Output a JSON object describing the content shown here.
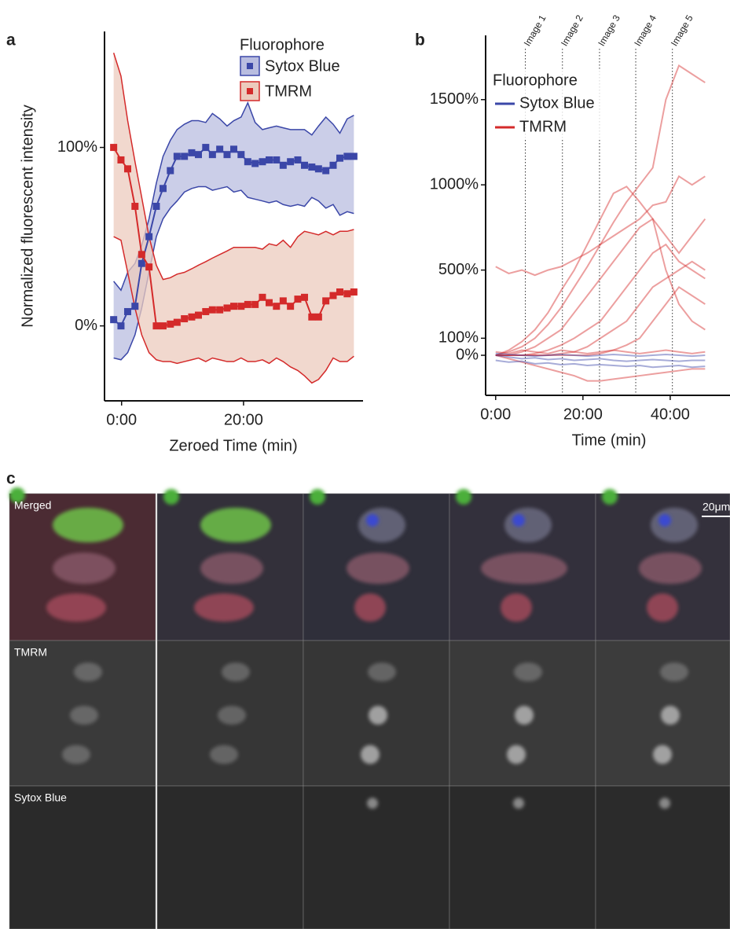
{
  "chart_data": [
    {
      "type": "line",
      "label": "a",
      "y_label": "Normalized fluorescent intensity",
      "x_label": "Zeroed Time (min)",
      "legend_title": "Fluorophore",
      "xlim": [
        -2.8,
        39.6
      ],
      "ylim": [
        -42,
        165
      ],
      "xticks": [
        {
          "value": 0,
          "label": "0:00"
        },
        {
          "value": 20,
          "label": "20:00"
        }
      ],
      "yticks": [
        {
          "value": 0,
          "label": "0%"
        },
        {
          "value": 100,
          "label": "100%"
        }
      ],
      "x": [
        -1.3,
        -0.1,
        1.0,
        2.2,
        3.3,
        4.5,
        5.7,
        6.8,
        8.0,
        9.1,
        10.3,
        11.5,
        12.6,
        13.8,
        14.9,
        16.1,
        17.3,
        18.4,
        19.6,
        20.7,
        21.9,
        23.1,
        24.2,
        25.4,
        26.5,
        27.7,
        28.9,
        30.0,
        31.2,
        32.3,
        33.5,
        34.7,
        35.8,
        37.0,
        38.1
      ],
      "series": [
        {
          "name": "Sytox Blue",
          "color": "#3b47a8",
          "band_color": "#b9bde0",
          "values": [
            3.5,
            0,
            8,
            11,
            35,
            50,
            67,
            77,
            87,
            95,
            95,
            97,
            96,
            100,
            96,
            99,
            96,
            99,
            96,
            92,
            91,
            92,
            93,
            93,
            90,
            92,
            93,
            90,
            89,
            88,
            87,
            90,
            94,
            95,
            95
          ],
          "upper": [
            25,
            20,
            30,
            35,
            45,
            60,
            80,
            95,
            104,
            110,
            113,
            115,
            115,
            114,
            119,
            116,
            112,
            115,
            117,
            125,
            114,
            110,
            111,
            112,
            111,
            110,
            110,
            110,
            107,
            112,
            117,
            113,
            108,
            116,
            118
          ],
          "lower": [
            -18,
            -19,
            -15,
            -5,
            10,
            30,
            50,
            60,
            66,
            70,
            75,
            77,
            78,
            78,
            76,
            77,
            78,
            75,
            76,
            72,
            71,
            70,
            69,
            70,
            68,
            67,
            68,
            67,
            72,
            70,
            66,
            68,
            62,
            64,
            63
          ]
        },
        {
          "name": "TMRM",
          "color": "#d42a2a",
          "band_color": "#eccbbd",
          "values": [
            100,
            93,
            88,
            67,
            40,
            33,
            0,
            0,
            1,
            2,
            4,
            5,
            6,
            8,
            9,
            9,
            10,
            11,
            11,
            12,
            12,
            16,
            13,
            11,
            14,
            11,
            15,
            16,
            5,
            5,
            14,
            17,
            19,
            18,
            19
          ],
          "upper": [
            153,
            140,
            115,
            92,
            72,
            50,
            34,
            26,
            27,
            29,
            30,
            32,
            34,
            36,
            38,
            40,
            42,
            44,
            44,
            44,
            44,
            43,
            46,
            45,
            48,
            44,
            50,
            53,
            52,
            51,
            53,
            51,
            53,
            53,
            54
          ],
          "lower": [
            50,
            48,
            30,
            10,
            -5,
            -15,
            -19,
            -20,
            -20,
            -21,
            -20,
            -19,
            -18,
            -20,
            -18,
            -19,
            -20,
            -20,
            -18,
            -20,
            -20,
            -19,
            -21,
            -18,
            -20,
            -23,
            -25,
            -28,
            -32,
            -30,
            -25,
            -18,
            -20,
            -20,
            -17
          ]
        }
      ]
    },
    {
      "type": "line",
      "label": "b",
      "x_label": "Time (min)",
      "legend_title": "Fluorophore",
      "xlim": [
        -2.3,
        53.7
      ],
      "ylim": [
        -235,
        1877
      ],
      "xticks": [
        {
          "value": 0,
          "label": "0:00"
        },
        {
          "value": 20,
          "label": "20:00"
        },
        {
          "value": 40,
          "label": "40:00"
        }
      ],
      "yticks": [
        {
          "value": 0,
          "label": "0%"
        },
        {
          "value": 100,
          "label": "100%"
        },
        {
          "value": 500,
          "label": "500%"
        },
        {
          "value": 1000,
          "label": "1000%"
        },
        {
          "value": 1500,
          "label": "1500%"
        }
      ],
      "annotations": [
        {
          "x": 6.8,
          "text": "Image 1"
        },
        {
          "x": 15.3,
          "text": "Image 2"
        },
        {
          "x": 23.8,
          "text": "Image 3"
        },
        {
          "x": 32.1,
          "text": "Image 4"
        },
        {
          "x": 40.5,
          "text": "Image 5"
        }
      ],
      "x": [
        0,
        3,
        6,
        9,
        12,
        15,
        18,
        21,
        24,
        27,
        30,
        33,
        36,
        39,
        42,
        45,
        48
      ],
      "series": [
        {
          "name": "Sytox Blue",
          "color": "#3b47a8",
          "traces": [
            [
              0,
              -10,
              -20,
              -15,
              -25,
              -20,
              -30,
              -25,
              -20,
              -30,
              -35,
              -30,
              -25,
              -30,
              -35,
              -30,
              -30
            ],
            [
              -30,
              -40,
              -35,
              -50,
              -45,
              -55,
              -50,
              -60,
              -55,
              -60,
              -65,
              -60,
              -70,
              -65,
              -60,
              -70,
              -65
            ],
            [
              10,
              5,
              0,
              -5,
              0,
              5,
              0,
              -5,
              0,
              5,
              0,
              -5,
              0,
              5,
              0,
              -5,
              0
            ]
          ]
        },
        {
          "name": "TMRM",
          "color": "#d42a2a",
          "traces": [
            [
              0,
              20,
              50,
              100,
              180,
              280,
              400,
              520,
              650,
              780,
              900,
              1000,
              1100,
              1500,
              1700,
              1650,
              1600
            ],
            [
              520,
              480,
              500,
              470,
              500,
              520,
              560,
              600,
              650,
              700,
              750,
              800,
              880,
              900,
              1050,
              1000,
              1050
            ],
            [
              0,
              30,
              80,
              150,
              250,
              380,
              500,
              650,
              800,
              950,
              990,
              900,
              800,
              500,
              300,
              200,
              150
            ],
            [
              0,
              0,
              20,
              50,
              100,
              150,
              250,
              350,
              450,
              550,
              650,
              750,
              800,
              700,
              600,
              700,
              800
            ],
            [
              0,
              0,
              0,
              10,
              30,
              60,
              100,
              150,
              200,
              300,
              400,
              500,
              600,
              650,
              550,
              500,
              450
            ],
            [
              0,
              0,
              0,
              0,
              0,
              10,
              20,
              50,
              100,
              150,
              200,
              300,
              400,
              450,
              500,
              550,
              500
            ],
            [
              0,
              0,
              0,
              0,
              0,
              0,
              0,
              0,
              10,
              30,
              60,
              100,
              200,
              300,
              400,
              350,
              300
            ],
            [
              0,
              -20,
              -40,
              -60,
              -80,
              -100,
              -120,
              -150,
              -150,
              -140,
              -130,
              -120,
              -110,
              -100,
              -90,
              -80,
              -80
            ],
            [
              20,
              10,
              30,
              20,
              10,
              30,
              20,
              10,
              20,
              30,
              20,
              10,
              20,
              30,
              20,
              10,
              20
            ]
          ]
        }
      ]
    }
  ],
  "micrograph": {
    "label": "c",
    "rows": [
      "Merged",
      "TMRM",
      "Sytox Blue"
    ],
    "scale_bar": "20μm"
  }
}
